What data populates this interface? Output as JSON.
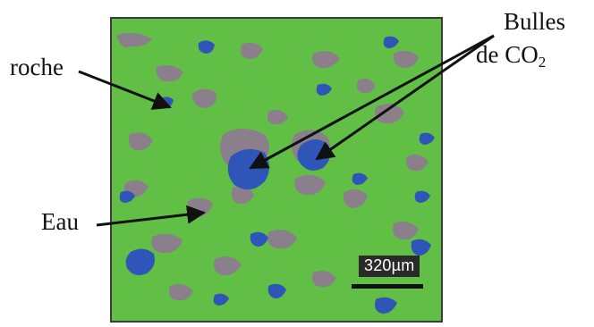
{
  "labels": {
    "rock": "roche",
    "water": "Eau",
    "bubbles_line1": "Bulles",
    "bubbles_prefix": "de CO",
    "bubbles_subscript": "2"
  },
  "scale_bar": {
    "text": "320µm"
  },
  "colors": {
    "rock": "#62bf45",
    "water": "#8a7f8a",
    "co2": "#2f55b8",
    "frame": "#3b3b3b",
    "arrow": "#111111"
  }
}
